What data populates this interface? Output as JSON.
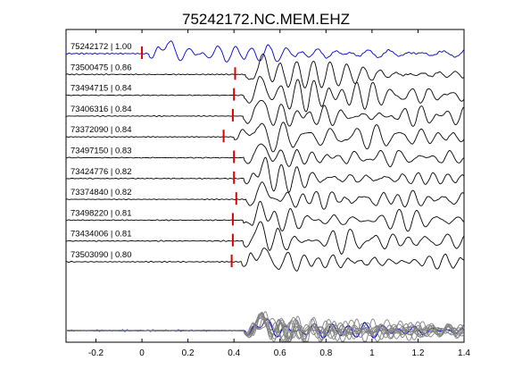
{
  "chart_data": {
    "type": "line",
    "title": "75242172.NC.MEM.EHZ",
    "xlabel": "",
    "ylabel": "",
    "xlim": [
      -0.33,
      1.4
    ],
    "x_ticks": [
      "-0.2",
      "0",
      "0.2",
      "0.4",
      "0.6",
      "0.8",
      "1",
      "1.2",
      "1.4"
    ],
    "x_tick_values": [
      -0.2,
      0,
      0.2,
      0.4,
      0.6,
      0.8,
      1.0,
      1.2,
      1.4
    ],
    "grid": false,
    "colors": {
      "reference": "#0000cc",
      "trace": "#000000",
      "stack": "#808080",
      "pick": "#dd0000",
      "frame": "#000000"
    },
    "traces": [
      {
        "label": "75242172 | 1.00",
        "pick_time": 0.0,
        "reference": true
      },
      {
        "label": "73500475 | 0.86",
        "pick_time": 0.405
      },
      {
        "label": "73494715 | 0.84",
        "pick_time": 0.4
      },
      {
        "label": "73406316 | 0.84",
        "pick_time": 0.395
      },
      {
        "label": "73372090 | 0.84",
        "pick_time": 0.355
      },
      {
        "label": "73497150 | 0.83",
        "pick_time": 0.4
      },
      {
        "label": "73424776 | 0.82",
        "pick_time": 0.4
      },
      {
        "label": "73374840 | 0.82",
        "pick_time": 0.41
      },
      {
        "label": "73498220 | 0.81",
        "pick_time": 0.395
      },
      {
        "label": "73434006 | 0.81",
        "pick_time": 0.395
      },
      {
        "label": "73503090 | 0.80",
        "pick_time": 0.39
      }
    ],
    "stack_label": ""
  }
}
